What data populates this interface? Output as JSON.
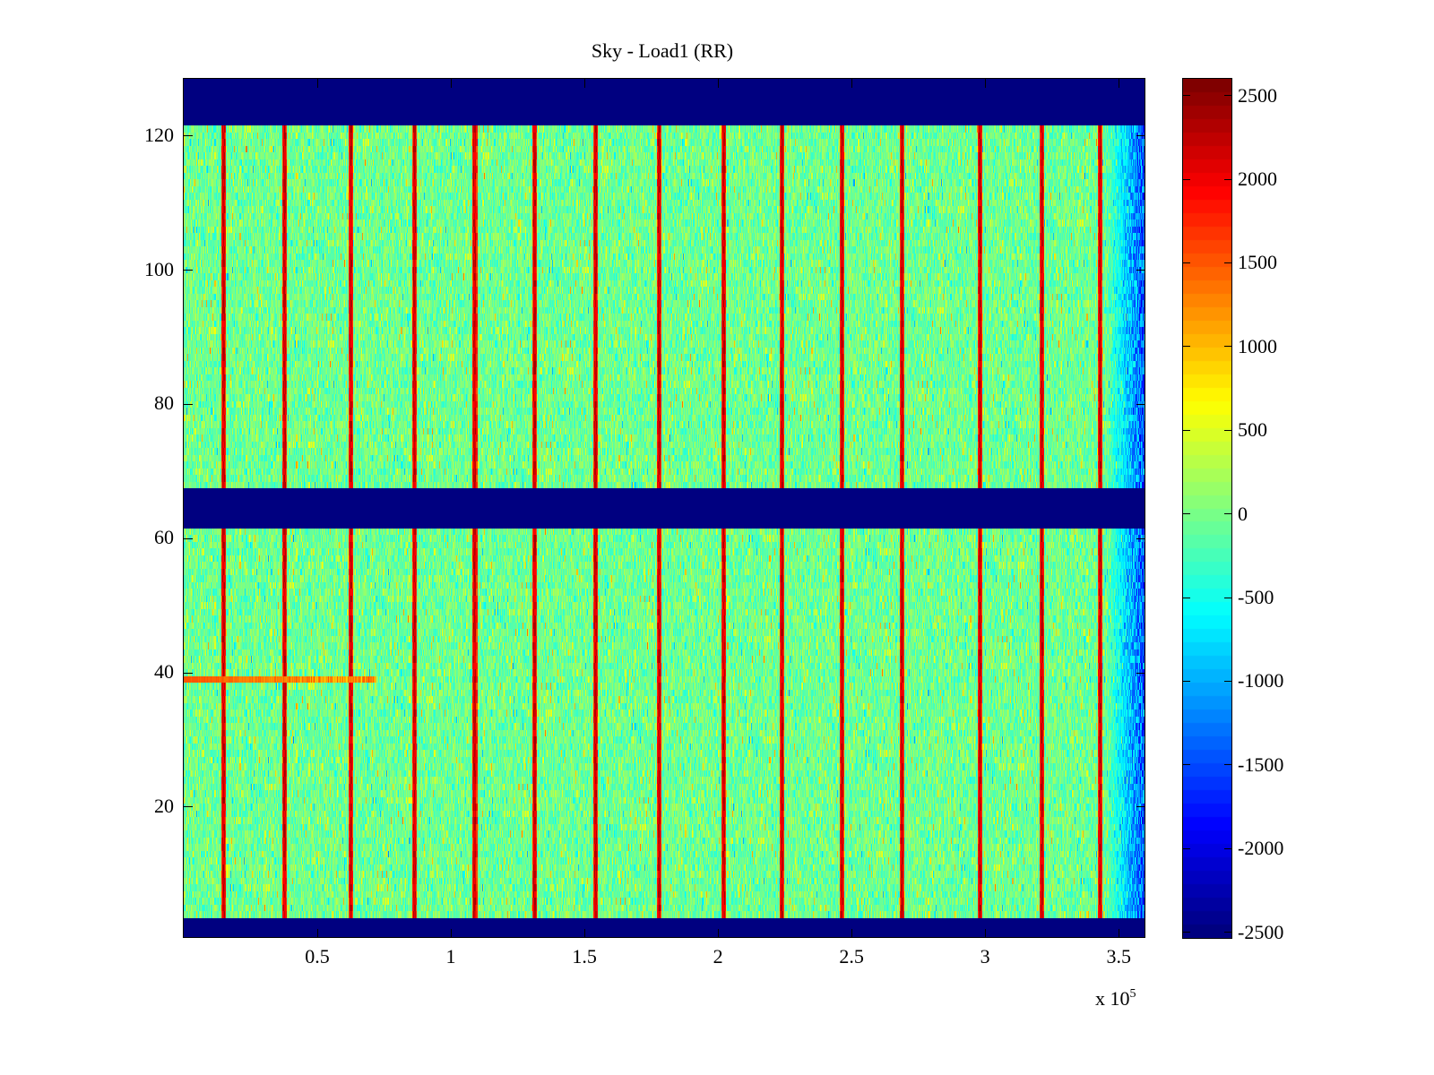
{
  "chart_data": {
    "type": "heatmap",
    "title": "Sky - Load1 (RR)",
    "xlabel": "",
    "ylabel": "",
    "x_multiplier_label": "x 10",
    "x_multiplier_exponent": "5",
    "xlim": [
      0,
      3.6
    ],
    "ylim": [
      0.5,
      128.5
    ],
    "xticks": [
      0.5,
      1,
      1.5,
      2,
      2.5,
      3,
      3.5
    ],
    "xtick_labels": [
      "0.5",
      "1",
      "1.5",
      "2",
      "2.5",
      "3",
      "3.5"
    ],
    "yticks": [
      20,
      40,
      60,
      80,
      100,
      120
    ],
    "ytick_labels": [
      "20",
      "40",
      "60",
      "80",
      "100",
      "120"
    ],
    "colormap": "jet",
    "clim": [
      -2534,
      2600
    ],
    "colorbar_ticks": [
      2500,
      2000,
      1500,
      1000,
      500,
      0,
      -500,
      -1000,
      -1500,
      -2000,
      -2500
    ],
    "colorbar_tick_labels": [
      "2500",
      "2000",
      "1500",
      "1000",
      "500",
      "0",
      "-500",
      "-1000",
      "-1500",
      "-2000",
      "-2500"
    ],
    "rows": 128,
    "masked_row_ranges": [
      [
        1,
        3
      ],
      [
        62,
        67
      ],
      [
        122,
        128
      ]
    ],
    "masked_value": -2534,
    "background_value_range": [
      -700,
      600
    ],
    "background_mean": 0,
    "bright_stripe_x": [
      0.148,
      0.376,
      0.624,
      0.862,
      1.087,
      1.312,
      1.54,
      1.779,
      2.02,
      2.238,
      2.463,
      2.688,
      2.98,
      3.211,
      3.43
    ],
    "bright_stripe_value": 2400,
    "hot_row": {
      "y": 39,
      "x_range": [
        0,
        0.72
      ],
      "value": 1500
    },
    "right_edge_low_region": {
      "x_range": [
        3.45,
        3.6
      ],
      "value_range": [
        -2200,
        -800
      ]
    },
    "grid": false
  }
}
